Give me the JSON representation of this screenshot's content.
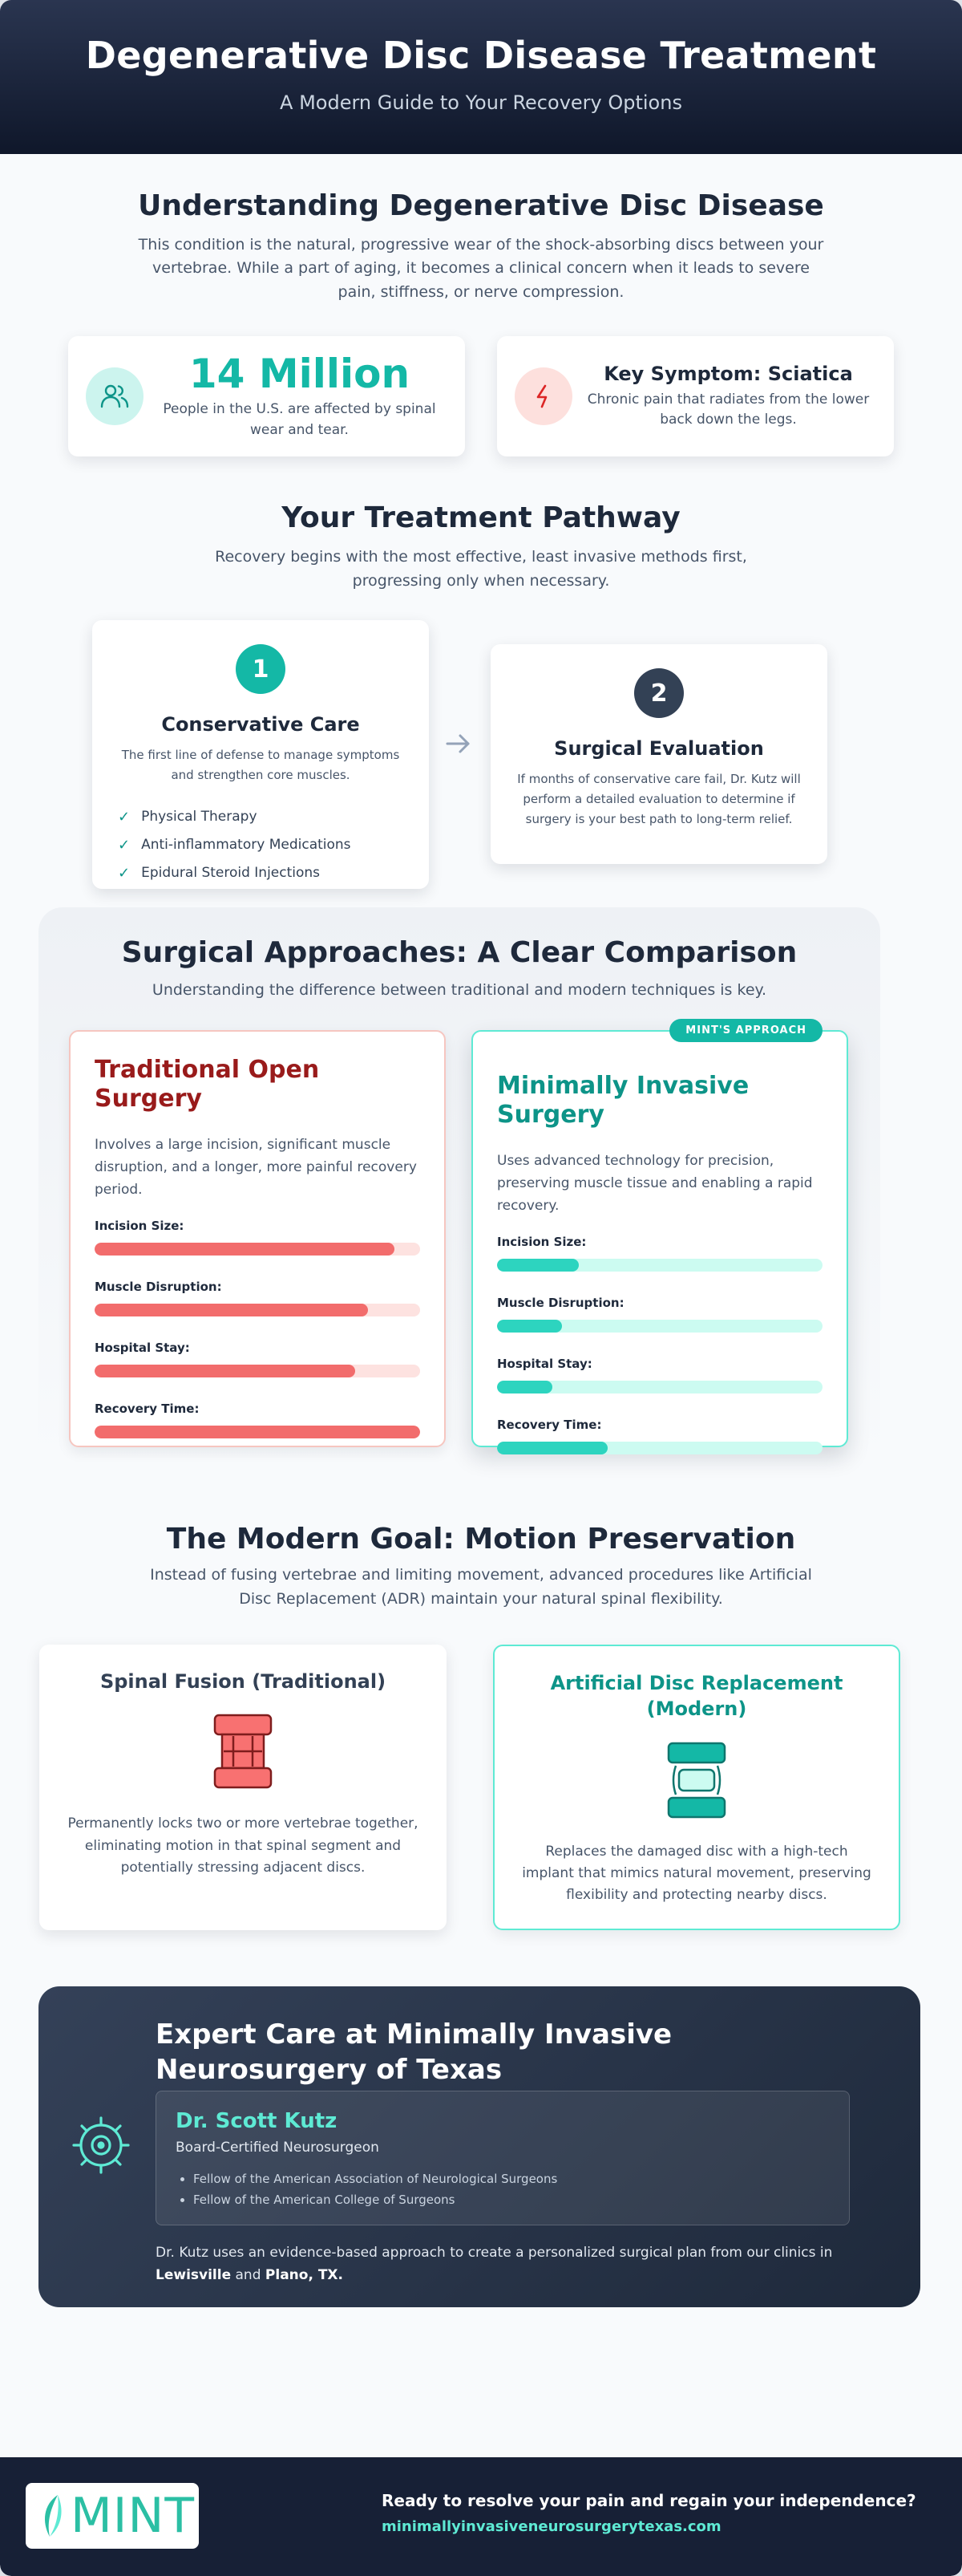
{
  "header": {
    "title": "Degenerative Disc Disease Treatment",
    "subtitle": "A Modern Guide to Your Recovery Options"
  },
  "understanding": {
    "title": "Understanding Degenerative Disc Disease",
    "intro": "This condition is the natural, progressive wear of the shock-absorbing discs between your vertebrae. While a part of aging, it becomes a clinical concern when it leads to severe pain, stiffness, or nerve compression.",
    "stat_card": {
      "icon": "users-icon",
      "value": "14 Million",
      "text": "People in the U.S. are affected by spinal wear and tear."
    },
    "symptom_card": {
      "icon": "lightning-icon",
      "title": "Key Symptom: Sciatica",
      "text": "Chronic pain that radiates from the lower back down the legs."
    }
  },
  "pathway": {
    "title": "Your Treatment Pathway",
    "intro": "Recovery begins with the most effective, least invasive methods first, progressing only when necessary.",
    "step1": {
      "number": "1",
      "title": "Conservative Care",
      "desc": "The first line of defense to manage symptoms and strengthen core muscles.",
      "items": [
        "Physical Therapy",
        "Anti-inflammatory Medications",
        "Epidural Steroid Injections"
      ]
    },
    "step2": {
      "number": "2",
      "title": "Surgical Evaluation",
      "desc": "If months of conservative care fail, Dr. Kutz will perform a detailed evaluation to determine if surgery is your best path to long-term relief."
    }
  },
  "comparison": {
    "title": "Surgical Approaches: A Clear Comparison",
    "intro": "Understanding the difference between traditional and modern techniques is key.",
    "traditional": {
      "title": "Traditional Open Surgery",
      "desc": "Involves a large incision, significant muscle disruption, and a longer, more painful recovery period.",
      "metrics": [
        {
          "label": "Incision Size:",
          "level": 0.92
        },
        {
          "label": "Muscle Disruption:",
          "level": 0.84
        },
        {
          "label": "Hospital Stay:",
          "level": 0.8
        },
        {
          "label": "Recovery Time:",
          "level": 1.0
        }
      ]
    },
    "minimally_invasive": {
      "badge": "MINT'S APPROACH",
      "title": "Minimally Invasive Surgery",
      "desc": "Uses advanced technology for precision, preserving muscle tissue and enabling a rapid recovery.",
      "metrics": [
        {
          "label": "Incision Size:",
          "level": 0.25
        },
        {
          "label": "Muscle Disruption:",
          "level": 0.2
        },
        {
          "label": "Hospital Stay:",
          "level": 0.17
        },
        {
          "label": "Recovery Time:",
          "level": 0.34
        }
      ]
    }
  },
  "motion": {
    "title": "The Modern Goal: Motion Preservation",
    "intro": "Instead of fusing vertebrae and limiting movement, advanced procedures like Artificial Disc Replacement (ADR) maintain your natural spinal flexibility.",
    "fusion": {
      "title": "Spinal Fusion (Traditional)",
      "desc": "Permanently locks two or more vertebrae together, eliminating motion in that spinal segment and potentially stressing adjacent discs."
    },
    "adr": {
      "title": "Artificial Disc Replacement (Modern)",
      "desc": "Replaces the damaged disc with a high-tech implant that mimics natural movement, preserving flexibility and protecting nearby discs."
    }
  },
  "expert": {
    "icon": "gear-icon",
    "title": "Expert Care at Minimally Invasive Neurosurgery of Texas",
    "doctor_name": "Dr. Scott Kutz",
    "doctor_role": "Board-Certified Neurosurgeon",
    "credentials": [
      "Fellow of the American Association of Neurological Surgeons",
      "Fellow of the American College of Surgeons"
    ],
    "note_prefix": "Dr. Kutz uses an evidence-based approach to create a personalized surgical plan from our clinics in ",
    "city1": "Lewisville",
    "note_and": " and ",
    "city2": "Plano, TX."
  },
  "footer": {
    "logo": "MINT",
    "cta": "Ready to resolve your pain and regain your independence?",
    "url": "minimallyinvasiveneurosurgerytexas.com"
  },
  "colors": {
    "teal": "#14b8a6",
    "dark_navy": "#0f172a",
    "red": "#991b1b",
    "bar_red": "#f26c6c",
    "bar_teal": "#2dd4bf"
  }
}
